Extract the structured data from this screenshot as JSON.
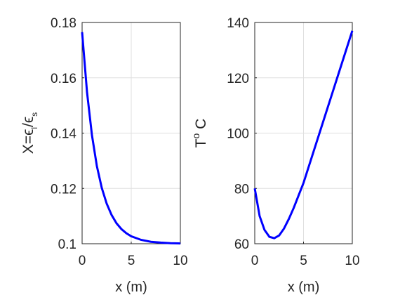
{
  "chart_data": [
    {
      "type": "line",
      "xlabel": "x (m)",
      "ylabel": [
        "X=ϵ",
        "l",
        "/ϵ",
        "s"
      ],
      "ylabel_style": [
        "normal",
        "sub",
        "normal",
        "sub"
      ],
      "x": [
        0,
        0.5,
        1,
        1.5,
        2,
        2.5,
        3,
        3.5,
        4,
        4.5,
        5,
        6,
        7,
        8,
        9,
        10
      ],
      "values": [
        0.1765,
        0.1548,
        0.1393,
        0.1281,
        0.1202,
        0.1145,
        0.1104,
        0.1074,
        0.1053,
        0.1038,
        0.1027,
        0.1014,
        0.1007,
        0.1004,
        0.1002,
        0.1001
      ],
      "color": "#0000ff",
      "xlim": [
        0,
        10
      ],
      "xticks": [
        0,
        5,
        10
      ],
      "ylim": [
        0.1,
        0.18
      ],
      "yticks": [
        0.1,
        0.12,
        0.14,
        0.16,
        0.18
      ],
      "grid": true
    },
    {
      "type": "line",
      "xlabel": "x (m)",
      "ylabel": [
        "T",
        "o",
        " C"
      ],
      "ylabel_style": [
        "normal",
        "super",
        "normal"
      ],
      "x": [
        0,
        0.5,
        1,
        1.5,
        2,
        2.5,
        3,
        3.5,
        4,
        4.5,
        5,
        6,
        7,
        8,
        9,
        10
      ],
      "values": [
        80,
        70,
        65,
        62.5,
        62,
        63,
        65.5,
        69,
        73,
        77.5,
        82,
        93,
        104,
        115,
        126,
        137
      ],
      "color": "#0000ff",
      "xlim": [
        0,
        10
      ],
      "xticks": [
        0,
        5,
        10
      ],
      "ylim": [
        60,
        140
      ],
      "yticks": [
        60,
        80,
        100,
        120,
        140
      ],
      "grid": true
    }
  ]
}
